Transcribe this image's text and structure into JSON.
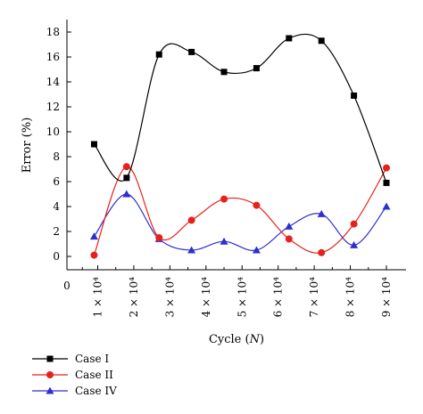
{
  "chart_data": {
    "type": "line",
    "xlabel": "Cycle",
    "xlabel_var": "N",
    "ylabel": "Error (%)",
    "ylim": [
      0,
      18
    ],
    "yticks": [
      0,
      2,
      4,
      6,
      8,
      10,
      12,
      14,
      16,
      18
    ],
    "xlim": [
      0,
      9.5
    ],
    "x_zero_label": "0",
    "x_tick_labels": [
      "1 × 10⁴",
      "2 × 10⁴",
      "3 × 10⁴",
      "4 × 10⁴",
      "5 × 10⁴",
      "6 × 10⁴",
      "7 × 10⁴",
      "8 × 10⁴",
      "9 × 10⁴"
    ],
    "x": [
      0.9,
      1.8,
      2.7,
      3.6,
      4.5,
      5.4,
      6.3,
      7.2,
      8.1,
      9.0
    ],
    "grid": false,
    "legend_position": "bottom-left",
    "series": [
      {
        "name": "Case I",
        "color": "#000000",
        "marker": "square",
        "values": [
          9.0,
          6.3,
          16.2,
          16.4,
          14.8,
          15.1,
          17.5,
          17.3,
          12.9,
          5.9
        ]
      },
      {
        "name": "Case II",
        "color": "#e8201c",
        "marker": "circle",
        "values": [
          0.1,
          7.2,
          1.5,
          2.9,
          4.6,
          4.1,
          1.4,
          0.3,
          2.6,
          7.1
        ]
      },
      {
        "name": "Case IV",
        "color": "#2f2fd0",
        "marker": "triangle",
        "values": [
          1.6,
          5.0,
          1.4,
          0.5,
          1.2,
          0.5,
          2.4,
          3.4,
          0.9,
          4.0
        ]
      }
    ]
  }
}
